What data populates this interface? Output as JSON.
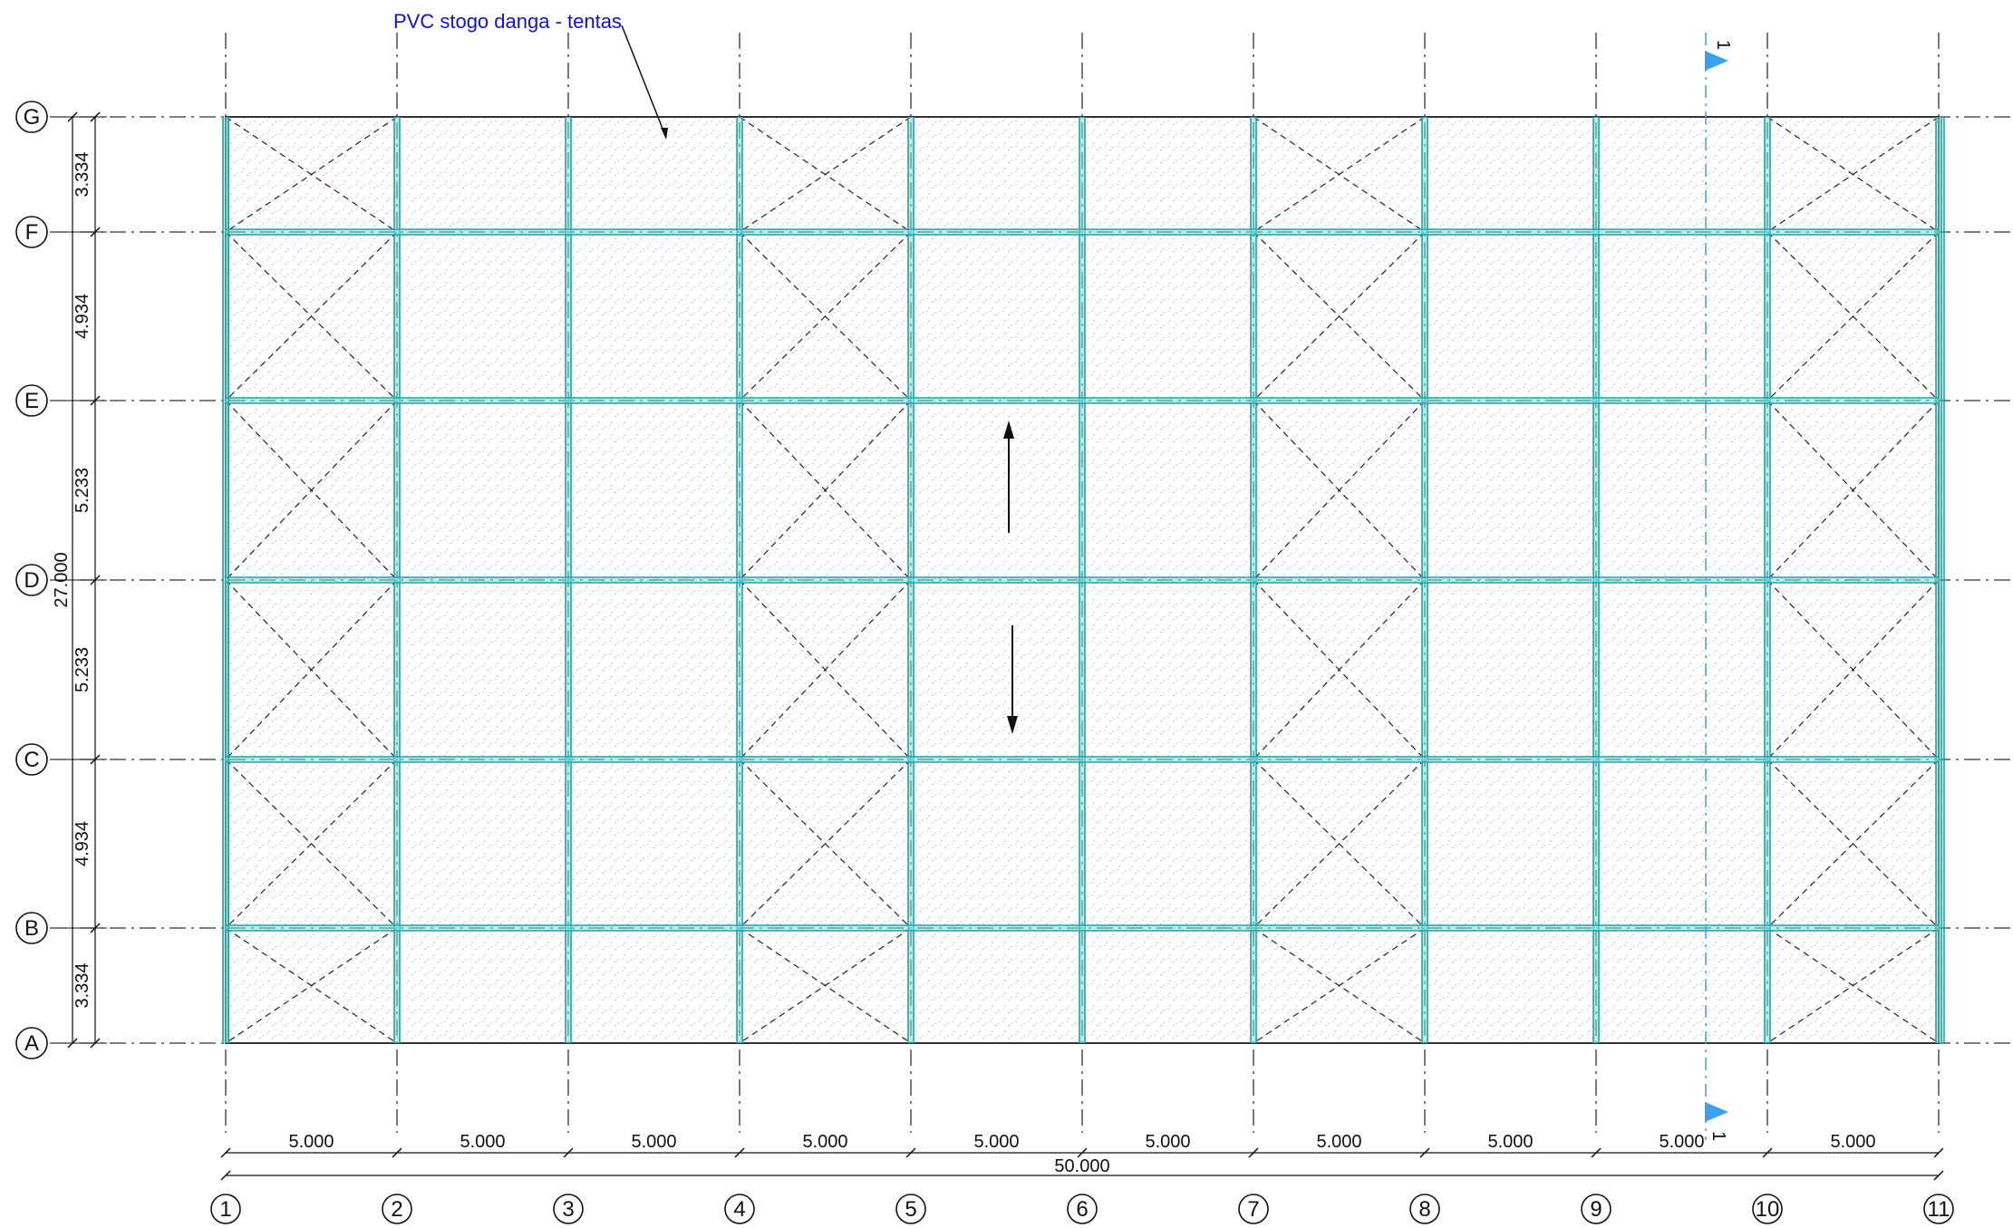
{
  "drawing": {
    "note": "PVC stogo danga - tentas",
    "column_axes": [
      "1",
      "2",
      "3",
      "4",
      "5",
      "6",
      "7",
      "8",
      "9",
      "10",
      "11"
    ],
    "row_axes": [
      "A",
      "B",
      "C",
      "D",
      "E",
      "F",
      "G"
    ],
    "bay_dimensions": [
      "5.000",
      "5.000",
      "5.000",
      "5.000",
      "5.000",
      "5.000",
      "5.000",
      "5.000",
      "5.000",
      "5.000"
    ],
    "total_length": "50.000",
    "row_dimensions": [
      "3.334",
      "4.934",
      "5.233",
      "5.233",
      "4.934",
      "3.334"
    ],
    "total_width": "27.000",
    "section_mark": "1",
    "braced_bays": [
      1,
      4,
      7,
      10
    ],
    "colors": {
      "beam": "#1aa5a5",
      "beam_light": "#7fe0e0",
      "grid": "#333333",
      "note": "#1010e0",
      "section": "#3aa0f0",
      "hatch": "#e8a0b0"
    }
  }
}
